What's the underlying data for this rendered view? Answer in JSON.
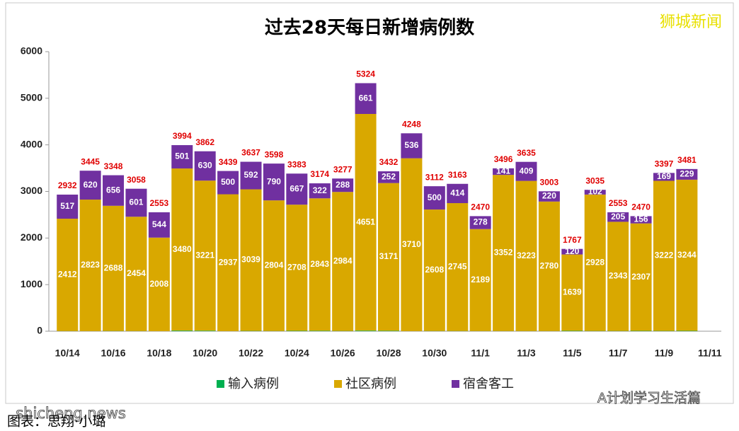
{
  "chart_data": {
    "type": "stacked_bar",
    "title": "过去28天每日新增病例数",
    "categories": [
      "10/14",
      null,
      "10/16",
      null,
      "10/18",
      null,
      "10/20",
      null,
      "10/22",
      null,
      "10/24",
      null,
      "10/26",
      null,
      "10/28",
      null,
      "10/30",
      null,
      "11/1",
      null,
      "11/3",
      null,
      "11/5",
      null,
      "11/7",
      null,
      "11/9",
      null,
      "11/11"
    ],
    "series": [
      {
        "name": "输入病例",
        "color": "#00b050",
        "values": [
          3,
          2,
          4,
          3,
          1,
          13,
          11,
          2,
          6,
          4,
          8,
          9,
          5,
          12,
          9,
          2,
          4,
          4,
          3,
          3,
          3,
          3,
          8,
          5,
          5,
          7,
          6,
          8,
          null
        ]
      },
      {
        "name": "社区病例",
        "color": "#d9a800",
        "values": [
          2412,
          2823,
          2688,
          2454,
          2008,
          3480,
          3221,
          2937,
          3039,
          2804,
          2708,
          2843,
          2984,
          4651,
          3171,
          3710,
          2608,
          2745,
          2189,
          3352,
          3223,
          2780,
          1639,
          2928,
          2343,
          2307,
          3222,
          3244,
          null
        ]
      },
      {
        "name": "宿舍客工",
        "color": "#7030a0",
        "values": [
          517,
          620,
          656,
          601,
          544,
          501,
          630,
          500,
          592,
          790,
          667,
          322,
          288,
          661,
          252,
          536,
          500,
          414,
          278,
          141,
          409,
          220,
          120,
          102,
          205,
          156,
          169,
          229,
          null
        ]
      }
    ],
    "totals": [
      2932,
      3445,
      3348,
      3058,
      2553,
      3994,
      3862,
      3439,
      3637,
      3598,
      3383,
      3174,
      3277,
      5324,
      3432,
      4248,
      3112,
      3163,
      2470,
      3496,
      3635,
      3003,
      1767,
      3035,
      2553,
      2470,
      3397,
      3481,
      null
    ],
    "ylim": [
      0,
      6000
    ],
    "yticks": [
      0,
      1000,
      2000,
      3000,
      4000,
      5000,
      6000
    ],
    "grid": false,
    "legend": "bottom",
    "annotations": [
      "狮城新闻",
      "A计划学习生活篇",
      "shicheng.news",
      "图表：思翔·小璐"
    ]
  }
}
